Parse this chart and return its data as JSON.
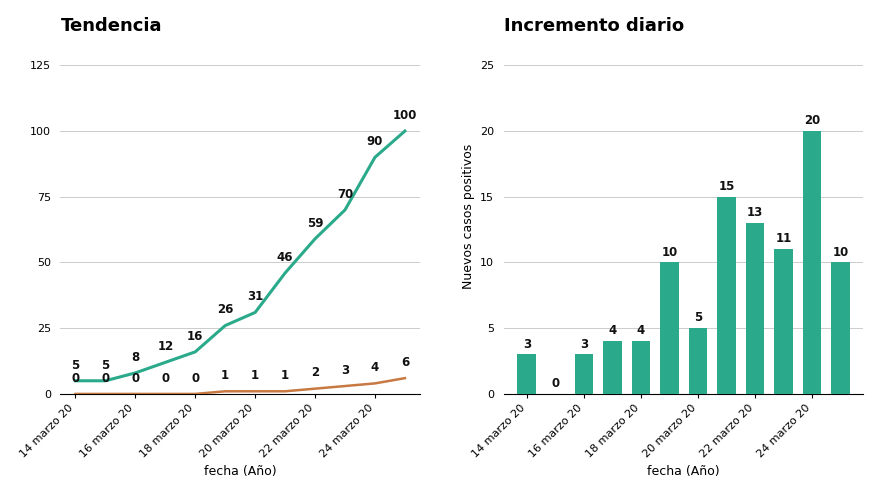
{
  "left_title": "Tendencia",
  "right_title": "Incremento diario",
  "green_line": [
    5,
    5,
    8,
    12,
    16,
    26,
    31,
    46,
    59,
    70,
    90,
    100
  ],
  "orange_line": [
    0,
    0,
    0,
    0,
    0,
    1,
    1,
    1,
    2,
    3,
    4,
    6
  ],
  "line_x": [
    0,
    1,
    2,
    3,
    4,
    5,
    6,
    7,
    8,
    9,
    10,
    11
  ],
  "bar_values": [
    3,
    0,
    3,
    4,
    4,
    10,
    5,
    15,
    13,
    11,
    20,
    10
  ],
  "bar_x": [
    0,
    1,
    2,
    3,
    4,
    5,
    6,
    7,
    8,
    9,
    10,
    11
  ],
  "line_xtick_positions": [
    0,
    2,
    4,
    6,
    8,
    10
  ],
  "line_xtick_labels": [
    "14 marzo 20",
    "16 marzo 20",
    "18 marzo 20",
    "20 marzo 20",
    "22 marzo 20",
    "24 marzo 20"
  ],
  "bar_xtick_positions": [
    0,
    2,
    4,
    6,
    8,
    10
  ],
  "bar_xtick_labels": [
    "14 marzo 20",
    "16 marzo 20",
    "18 marzo 20",
    "20 marzo 20",
    "22 marzo 20",
    "24 marzo 20"
  ],
  "green_color": "#2aaa8a",
  "orange_color": "#c87941",
  "bar_color": "#2aaa8a",
  "bg_color": "#ffffff",
  "grid_color": "#cccccc",
  "text_color": "#111111",
  "xlabel": "fecha (Año)",
  "right_ylabel": "Nuevos casos positivos",
  "left_ylim": [
    0,
    135
  ],
  "right_ylim": [
    0,
    27
  ],
  "left_yticks": [
    0,
    25,
    50,
    75,
    100,
    125
  ],
  "right_yticks": [
    0,
    5,
    10,
    15,
    20,
    25
  ],
  "title_fontsize": 13,
  "label_fontsize": 9,
  "annot_fontsize": 8.5,
  "tick_fontsize": 8
}
